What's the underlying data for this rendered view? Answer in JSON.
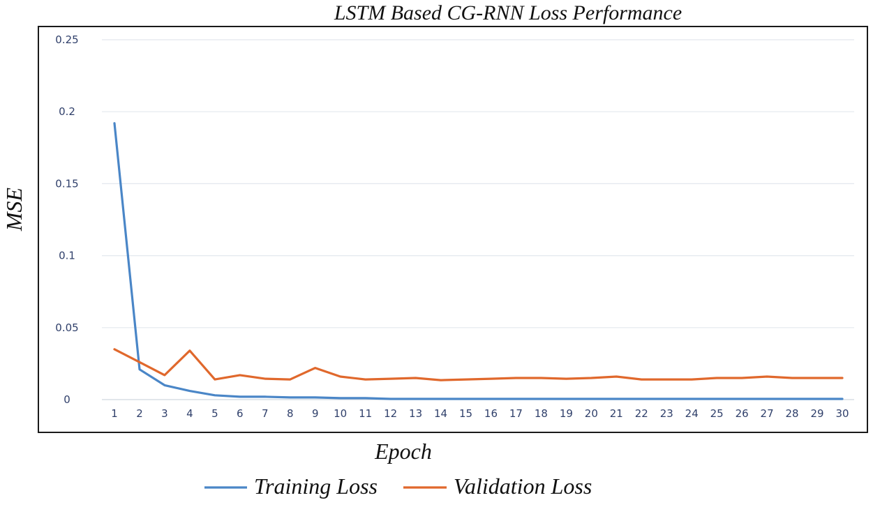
{
  "chart_data": {
    "type": "line",
    "title": "LSTM Based CG-RNN Loss Performance",
    "xlabel": "Epoch",
    "ylabel": "MSE",
    "ylim": [
      0,
      0.25
    ],
    "yticks": [
      "0",
      "0.05",
      "0.1",
      "0.15",
      "0.2",
      "0.25"
    ],
    "grid": "horizontal",
    "legend_position": "bottom",
    "categories": [
      "1",
      "2",
      "3",
      "4",
      "5",
      "6",
      "7",
      "8",
      "9",
      "10",
      "11",
      "12",
      "13",
      "14",
      "15",
      "16",
      "17",
      "18",
      "19",
      "20",
      "21",
      "22",
      "23",
      "24",
      "25",
      "26",
      "27",
      "28",
      "29",
      "30"
    ],
    "series": [
      {
        "name": "Training Loss",
        "color": "#4a86c7",
        "values": [
          0.192,
          0.021,
          0.01,
          0.006,
          0.003,
          0.002,
          0.002,
          0.0015,
          0.0015,
          0.001,
          0.001,
          0.0005,
          0.0005,
          0.0005,
          0.0005,
          0.0005,
          0.0005,
          0.0005,
          0.0005,
          0.0005,
          0.0005,
          0.0005,
          0.0005,
          0.0005,
          0.0005,
          0.0005,
          0.0005,
          0.0005,
          0.0005,
          0.0005
        ]
      },
      {
        "name": "Validation Loss",
        "color": "#e0682c",
        "values": [
          0.035,
          0.026,
          0.017,
          0.034,
          0.014,
          0.017,
          0.0145,
          0.014,
          0.022,
          0.016,
          0.014,
          0.0145,
          0.015,
          0.0135,
          0.014,
          0.0145,
          0.015,
          0.015,
          0.0145,
          0.015,
          0.016,
          0.014,
          0.014,
          0.014,
          0.015,
          0.015,
          0.016,
          0.015,
          0.015,
          0.015
        ]
      }
    ]
  }
}
